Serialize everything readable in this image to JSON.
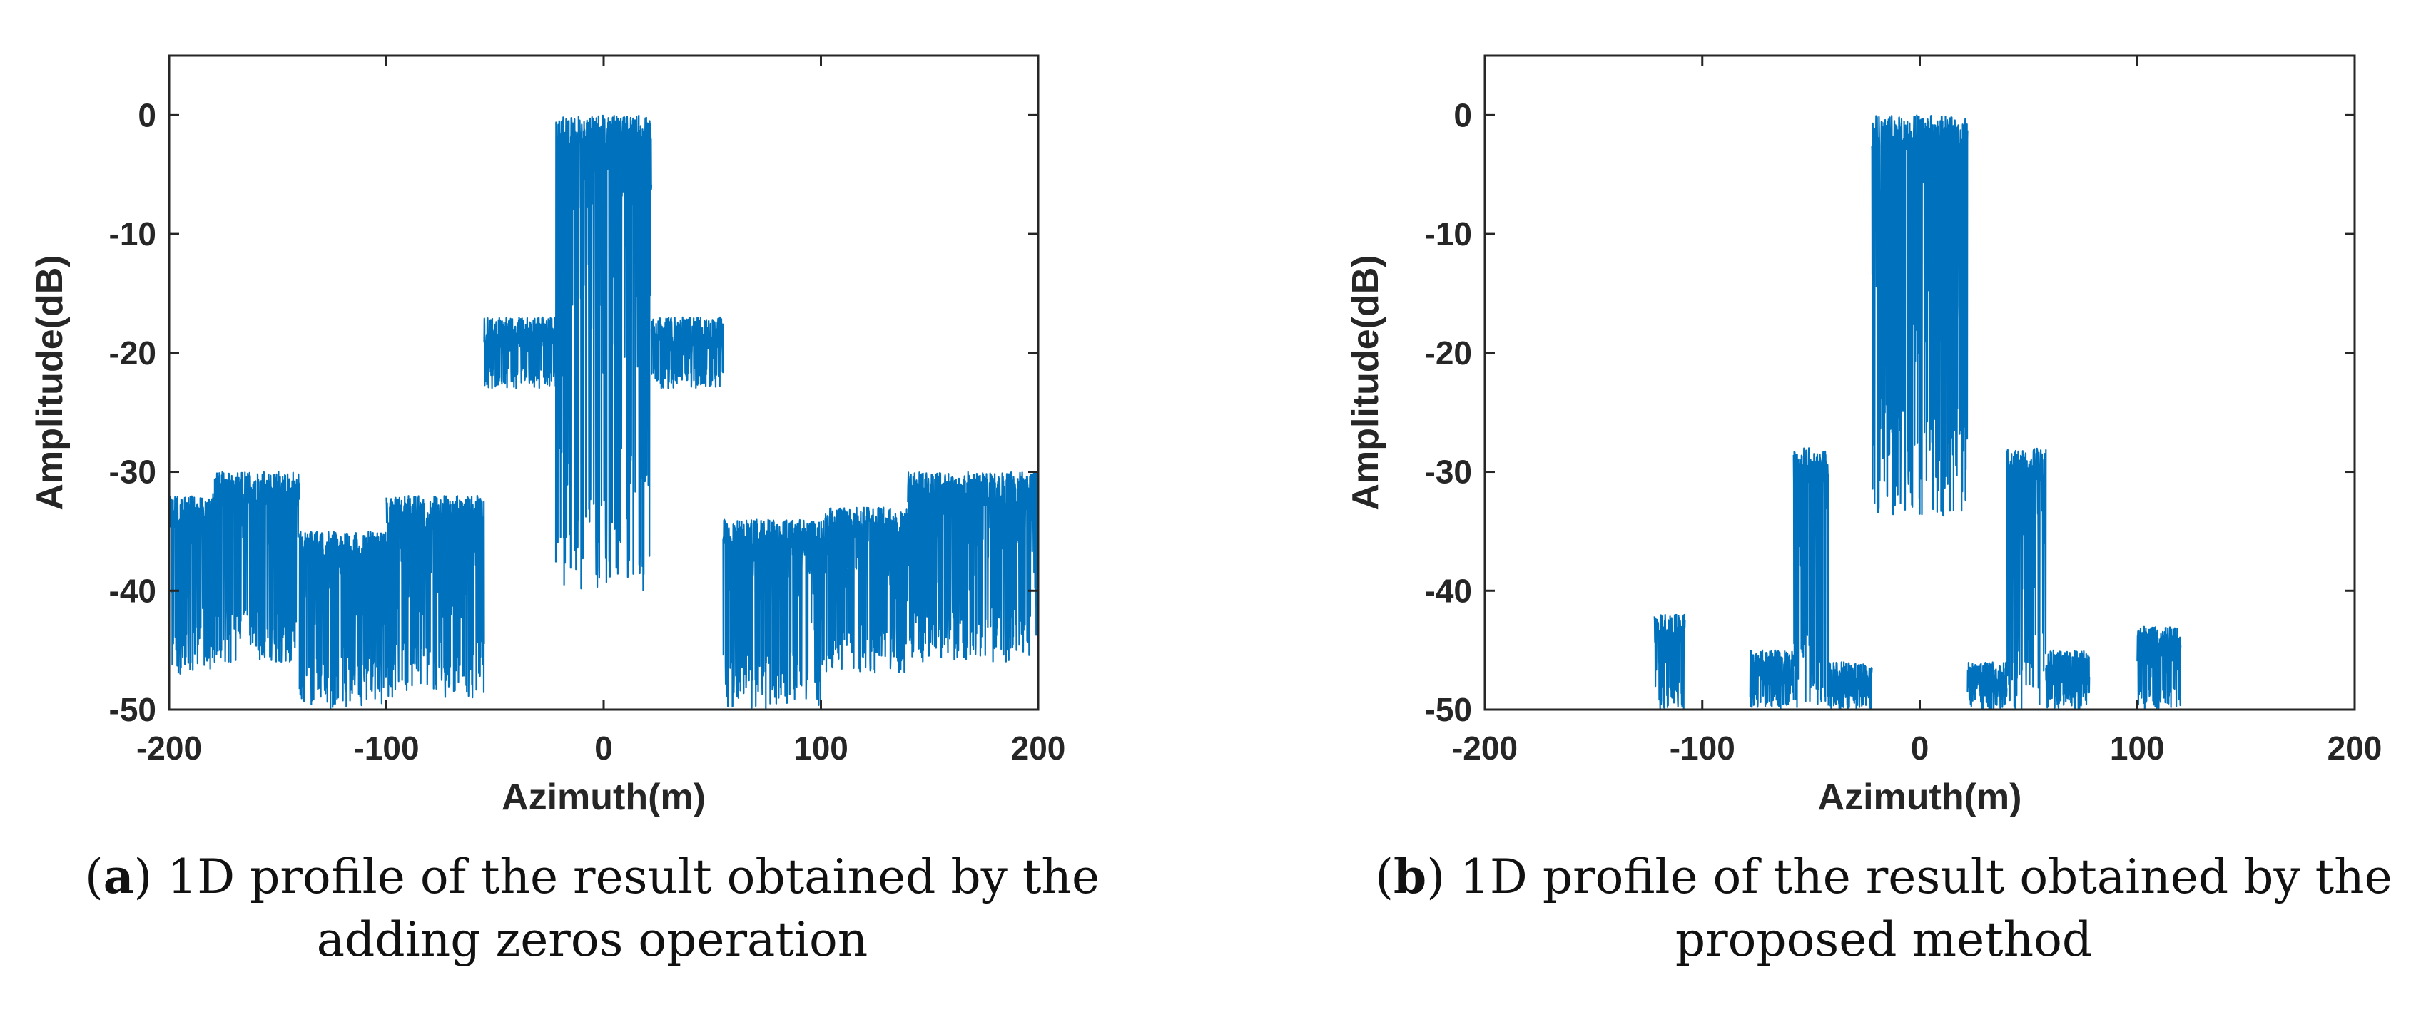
{
  "figure": {
    "panels": [
      {
        "letter": "a",
        "caption_line1": ") 1D profile of the result obtained by the",
        "caption_line2": "adding zeros operation"
      },
      {
        "letter": "b",
        "caption_line1": ") 1D profile of the result obtained by the",
        "caption_line2": "proposed method"
      }
    ]
  },
  "colors": {
    "series": "#0072BD",
    "axes": "#262626"
  },
  "chart_data": [
    {
      "type": "line",
      "title": "",
      "xlabel": "Azimuth(m)",
      "ylabel": "Amplitude(dB)",
      "xlim": [
        -200,
        200
      ],
      "ylim": [
        -50,
        5
      ],
      "xticks": [
        -200,
        -100,
        0,
        100,
        200
      ],
      "yticks": [
        0,
        -10,
        -20,
        -30,
        -40,
        -50
      ],
      "grid": false,
      "series": [
        {
          "name": "profile",
          "color": "#0072BD"
        }
      ],
      "envelope": [
        {
          "x0": -200,
          "x1": -180,
          "top": -32,
          "bottom": -47
        },
        {
          "x0": -180,
          "x1": -140,
          "top": -30,
          "bottom": -46
        },
        {
          "x0": -140,
          "x1": -100,
          "top": -35,
          "bottom": -50
        },
        {
          "x0": -100,
          "x1": -55,
          "top": -32,
          "bottom": -49
        },
        {
          "x0": -55,
          "x1": -22,
          "top": -17,
          "bottom": -23
        },
        {
          "x0": -22,
          "x1": 22,
          "top": 0,
          "bottom": -40
        },
        {
          "x0": 22,
          "x1": 55,
          "top": -17,
          "bottom": -23
        },
        {
          "x0": 55,
          "x1": 100,
          "top": -34,
          "bottom": -50
        },
        {
          "x0": 100,
          "x1": 140,
          "top": -33,
          "bottom": -47
        },
        {
          "x0": 140,
          "x1": 200,
          "top": -30,
          "bottom": -46
        }
      ]
    },
    {
      "type": "line",
      "title": "",
      "xlabel": "Azimuth(m)",
      "ylabel": "Amplitude(dB)",
      "xlim": [
        -200,
        200
      ],
      "ylim": [
        -50,
        5
      ],
      "xticks": [
        -200,
        -100,
        0,
        100,
        200
      ],
      "yticks": [
        0,
        -10,
        -20,
        -30,
        -40,
        -50
      ],
      "grid": false,
      "series": [
        {
          "name": "profile",
          "color": "#0072BD"
        }
      ],
      "envelope": [
        {
          "x0": -122,
          "x1": -108,
          "top": -42,
          "bottom": -50
        },
        {
          "x0": -78,
          "x1": -58,
          "top": -45,
          "bottom": -50
        },
        {
          "x0": -58,
          "x1": -42,
          "top": -28,
          "bottom": -50
        },
        {
          "x0": -42,
          "x1": -22,
          "top": -46,
          "bottom": -50
        },
        {
          "x0": -22,
          "x1": 22,
          "top": 0,
          "bottom": -34
        },
        {
          "x0": 22,
          "x1": 40,
          "top": -46,
          "bottom": -50
        },
        {
          "x0": 40,
          "x1": 58,
          "top": -28,
          "bottom": -50
        },
        {
          "x0": 58,
          "x1": 78,
          "top": -45,
          "bottom": -50
        },
        {
          "x0": 100,
          "x1": 120,
          "top": -43,
          "bottom": -50
        }
      ]
    }
  ]
}
